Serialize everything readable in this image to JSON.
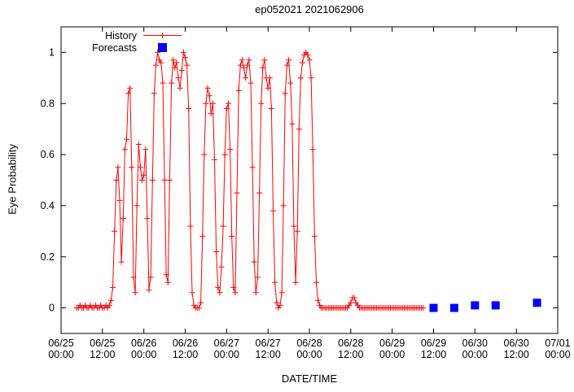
{
  "chart_data": {
    "type": "line",
    "title": "ep052021 2021062906",
    "xlabel": "DATE/TIME",
    "ylabel": "Eye Probability",
    "xlim": [
      0,
      144
    ],
    "ylim": [
      -0.1,
      1.1
    ],
    "x_unit": "hours since 06/25 00:00",
    "grid": false,
    "colors": {
      "axis": "#000000",
      "text": "#000000",
      "background": "#ffffff"
    },
    "legend": {
      "position": "top-left-inside",
      "entries": [
        {
          "label": "History",
          "style": "line-plus"
        },
        {
          "label": "Forecasts",
          "style": "filled-square"
        }
      ]
    },
    "y_ticks": [
      "0",
      "0.2",
      "0.4",
      "0.6",
      "0.8",
      "1"
    ],
    "x_ticks": [
      {
        "hour": 0,
        "date": "06/25",
        "time": "00:00"
      },
      {
        "hour": 12,
        "date": "06/25",
        "time": "12:00"
      },
      {
        "hour": 24,
        "date": "06/26",
        "time": "00:00"
      },
      {
        "hour": 36,
        "date": "06/26",
        "time": "12:00"
      },
      {
        "hour": 48,
        "date": "06/27",
        "time": "00:00"
      },
      {
        "hour": 60,
        "date": "06/27",
        "time": "12:00"
      },
      {
        "hour": 72,
        "date": "06/28",
        "time": "00:00"
      },
      {
        "hour": 84,
        "date": "06/28",
        "time": "12:00"
      },
      {
        "hour": 96,
        "date": "06/29",
        "time": "00:00"
      },
      {
        "hour": 108,
        "date": "06/29",
        "time": "12:00"
      },
      {
        "hour": 120,
        "date": "06/30",
        "time": "00:00"
      },
      {
        "hour": 132,
        "date": "06/30",
        "time": "12:00"
      },
      {
        "hour": 144,
        "date": "07/01",
        "time": "00:00"
      }
    ],
    "series": [
      {
        "name": "History",
        "type": "line",
        "marker": "plus",
        "color": "#ff0000",
        "points": [
          [
            4.5,
            0
          ],
          [
            5,
            0
          ],
          [
            5.5,
            0.01
          ],
          [
            6,
            0
          ],
          [
            6.5,
            0
          ],
          [
            7,
            0.01
          ],
          [
            7.5,
            0
          ],
          [
            8,
            0
          ],
          [
            8.5,
            0.01
          ],
          [
            9,
            0
          ],
          [
            9.5,
            0
          ],
          [
            10,
            0.01
          ],
          [
            10.5,
            0
          ],
          [
            11,
            0
          ],
          [
            11.5,
            0.01
          ],
          [
            12,
            0
          ],
          [
            12.5,
            0
          ],
          [
            13,
            0.01
          ],
          [
            13.5,
            0
          ],
          [
            14,
            0.01
          ],
          [
            14.5,
            0.03
          ],
          [
            15,
            0.08
          ],
          [
            15.5,
            0.3
          ],
          [
            16,
            0.5
          ],
          [
            16.5,
            0.55
          ],
          [
            17,
            0.42
          ],
          [
            17.5,
            0.18
          ],
          [
            18,
            0.35
          ],
          [
            18.5,
            0.62
          ],
          [
            19,
            0.66
          ],
          [
            19.5,
            0.84
          ],
          [
            20,
            0.86
          ],
          [
            20.5,
            0.55
          ],
          [
            21,
            0.12
          ],
          [
            21.5,
            0.06
          ],
          [
            22,
            0.4
          ],
          [
            22.5,
            0.64
          ],
          [
            23,
            0.55
          ],
          [
            23.5,
            0.5
          ],
          [
            24,
            0.52
          ],
          [
            24.5,
            0.62
          ],
          [
            25,
            0.35
          ],
          [
            25.5,
            0.07
          ],
          [
            26,
            0.12
          ],
          [
            26.5,
            0.5
          ],
          [
            27,
            0.84
          ],
          [
            27.5,
            0.95
          ],
          [
            28,
            1.0
          ],
          [
            28.5,
            0.97
          ],
          [
            29,
            0.96
          ],
          [
            29.5,
            0.88
          ],
          [
            30,
            0.5
          ],
          [
            30.5,
            0.13
          ],
          [
            31,
            0.1
          ],
          [
            31.5,
            0.5
          ],
          [
            32,
            0.88
          ],
          [
            32.5,
            0.97
          ],
          [
            33,
            0.94
          ],
          [
            33.5,
            0.96
          ],
          [
            34,
            0.9
          ],
          [
            34.5,
            0.86
          ],
          [
            35,
            0.93
          ],
          [
            35.5,
            1.0
          ],
          [
            36,
            0.98
          ],
          [
            36.5,
            0.95
          ],
          [
            37,
            0.78
          ],
          [
            37.5,
            0.32
          ],
          [
            38,
            0.06
          ],
          [
            38.5,
            0.01
          ],
          [
            39,
            0
          ],
          [
            39.5,
            0
          ],
          [
            40,
            0
          ],
          [
            40.5,
            0.02
          ],
          [
            41,
            0.28
          ],
          [
            41.5,
            0.6
          ],
          [
            42,
            0.8
          ],
          [
            42.5,
            0.86
          ],
          [
            43,
            0.83
          ],
          [
            43.5,
            0.76
          ],
          [
            44,
            0.8
          ],
          [
            44.5,
            0.58
          ],
          [
            45,
            0.22
          ],
          [
            45.5,
            0.08
          ],
          [
            46,
            0.06
          ],
          [
            46.5,
            0.16
          ],
          [
            47,
            0.32
          ],
          [
            47.5,
            0.6
          ],
          [
            48,
            0.78
          ],
          [
            48.5,
            0.8
          ],
          [
            49,
            0.62
          ],
          [
            49.5,
            0.28
          ],
          [
            50,
            0.08
          ],
          [
            50.5,
            0.06
          ],
          [
            51,
            0.45
          ],
          [
            51.5,
            0.85
          ],
          [
            52,
            0.95
          ],
          [
            52.5,
            0.97
          ],
          [
            53,
            0.94
          ],
          [
            53.5,
            0.9
          ],
          [
            54,
            0.95
          ],
          [
            54.5,
            0.97
          ],
          [
            55,
            0.88
          ],
          [
            55.5,
            0.55
          ],
          [
            56,
            0.18
          ],
          [
            56.5,
            0.06
          ],
          [
            57,
            0.12
          ],
          [
            57.5,
            0.45
          ],
          [
            58,
            0.8
          ],
          [
            58.5,
            0.94
          ],
          [
            59,
            0.97
          ],
          [
            59.5,
            0.9
          ],
          [
            60,
            0.86
          ],
          [
            60.5,
            0.9
          ],
          [
            61,
            0.78
          ],
          [
            61.5,
            0.38
          ],
          [
            62,
            0.1
          ],
          [
            62.5,
            0.02
          ],
          [
            63,
            0
          ],
          [
            63.5,
            0.01
          ],
          [
            64,
            0.06
          ],
          [
            64.5,
            0.4
          ],
          [
            65,
            0.84
          ],
          [
            65.5,
            0.95
          ],
          [
            66,
            0.97
          ],
          [
            66.5,
            0.88
          ],
          [
            67,
            0.72
          ],
          [
            67.5,
            0.32
          ],
          [
            68,
            0.1
          ],
          [
            68.5,
            0.3
          ],
          [
            69,
            0.7
          ],
          [
            69.5,
            0.9
          ],
          [
            70,
            0.96
          ],
          [
            70.5,
            0.99
          ],
          [
            71,
            1.0
          ],
          [
            71.5,
            0.99
          ],
          [
            72,
            0.97
          ],
          [
            72.5,
            0.9
          ],
          [
            73,
            0.62
          ],
          [
            73.5,
            0.28
          ],
          [
            74,
            0.1
          ],
          [
            74.5,
            0.03
          ],
          [
            75,
            0.01
          ],
          [
            75.5,
            0
          ],
          [
            76,
            0
          ],
          [
            76.5,
            0
          ],
          [
            77,
            0
          ],
          [
            77.5,
            0
          ],
          [
            78,
            0
          ],
          [
            78.5,
            0
          ],
          [
            79,
            0
          ],
          [
            79.5,
            0
          ],
          [
            80,
            0
          ],
          [
            80.5,
            0
          ],
          [
            81,
            0
          ],
          [
            81.5,
            0
          ],
          [
            82,
            0
          ],
          [
            82.5,
            0
          ],
          [
            83,
            0
          ],
          [
            83.5,
            0.01
          ],
          [
            84,
            0.02
          ],
          [
            84.5,
            0.04
          ],
          [
            85,
            0.04
          ],
          [
            85.5,
            0.02
          ],
          [
            86,
            0.01
          ],
          [
            86.5,
            0
          ],
          [
            87,
            0
          ],
          [
            87.5,
            0
          ],
          [
            88,
            0
          ],
          [
            88.5,
            0
          ],
          [
            89,
            0
          ],
          [
            89.5,
            0
          ],
          [
            90,
            0
          ],
          [
            90.5,
            0
          ],
          [
            91,
            0
          ],
          [
            91.5,
            0
          ],
          [
            92,
            0
          ],
          [
            92.5,
            0
          ],
          [
            93,
            0
          ],
          [
            93.5,
            0
          ],
          [
            94,
            0
          ],
          [
            94.5,
            0
          ],
          [
            95,
            0
          ],
          [
            95.5,
            0
          ],
          [
            96,
            0
          ],
          [
            96.5,
            0
          ],
          [
            97,
            0
          ],
          [
            97.5,
            0
          ],
          [
            98,
            0
          ],
          [
            98.5,
            0
          ],
          [
            99,
            0
          ],
          [
            99.5,
            0
          ],
          [
            100,
            0
          ],
          [
            100.5,
            0
          ],
          [
            101,
            0
          ],
          [
            101.5,
            0
          ],
          [
            102,
            0
          ],
          [
            102.5,
            0
          ],
          [
            103,
            0
          ],
          [
            103.5,
            0
          ],
          [
            104,
            0
          ],
          [
            104.5,
            0
          ],
          [
            105,
            0
          ]
        ]
      },
      {
        "name": "Forecasts",
        "type": "scatter",
        "marker": "square",
        "color": "#0000ff",
        "points": [
          [
            108,
            0
          ],
          [
            114,
            0
          ],
          [
            120,
            0.01
          ],
          [
            126,
            0.01
          ],
          [
            138,
            0.02
          ]
        ]
      }
    ]
  }
}
